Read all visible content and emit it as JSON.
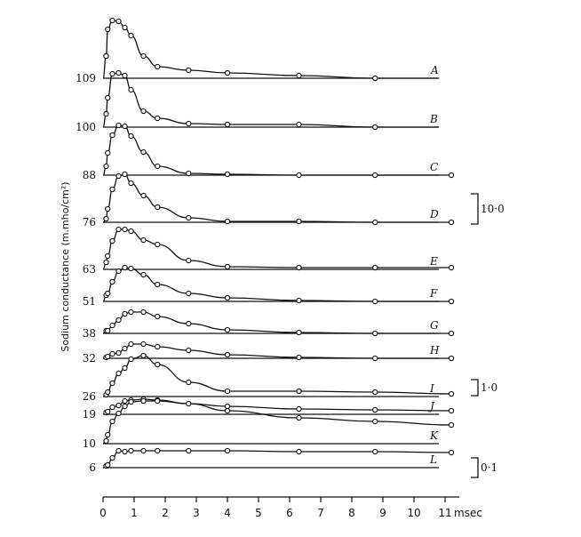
{
  "chart_data": {
    "type": "line",
    "ylabel": "Sodium conductance (m.mho/cm²)",
    "x_unit": "msec",
    "x_ticks": [
      "0",
      "1",
      "2",
      "3",
      "4",
      "5",
      "6",
      "7",
      "8",
      "9",
      "10",
      "11"
    ],
    "xlim": [
      0,
      11.5
    ],
    "scale_bars": [
      {
        "label": "10·0",
        "applies_to": [
          "A",
          "B",
          "C",
          "D"
        ]
      },
      {
        "label": "1·0",
        "applies_to": [
          "E",
          "F",
          "G",
          "H",
          "I"
        ]
      },
      {
        "label": "0·1",
        "applies_to": [
          "J",
          "K",
          "L"
        ]
      }
    ],
    "series": [
      {
        "name": "A",
        "voltage": "109",
        "scale": "10·0",
        "x": [
          0.1,
          0.15,
          0.3,
          0.5,
          0.7,
          0.9,
          1.3,
          1.75,
          2.75,
          4.0,
          6.3,
          8.75
        ],
        "y": [
          2.5,
          5.5,
          6.5,
          6.4,
          5.7,
          4.8,
          2.5,
          1.3,
          0.9,
          0.6,
          0.3,
          0.0
        ]
      },
      {
        "name": "B",
        "voltage": "100",
        "scale": "10·0",
        "x": [
          0.1,
          0.15,
          0.3,
          0.5,
          0.7,
          0.9,
          1.3,
          1.75,
          2.75,
          4.0,
          6.3,
          8.75
        ],
        "y": [
          1.5,
          3.3,
          6.0,
          6.1,
          5.8,
          4.2,
          1.8,
          1.0,
          0.4,
          0.3,
          0.3,
          0.0
        ]
      },
      {
        "name": "C",
        "voltage": "88",
        "scale": "10·0",
        "x": [
          0.1,
          0.15,
          0.3,
          0.5,
          0.7,
          0.9,
          1.3,
          1.75,
          2.75,
          4.0,
          6.3,
          8.75,
          11.2
        ],
        "y": [
          1.0,
          2.5,
          4.5,
          5.6,
          5.5,
          4.4,
          2.6,
          1.0,
          0.2,
          0.1,
          0.0,
          0.0,
          0.0
        ]
      },
      {
        "name": "D",
        "voltage": "76",
        "scale": "10·0",
        "x": [
          0.1,
          0.15,
          0.3,
          0.5,
          0.7,
          0.9,
          1.3,
          1.75,
          2.75,
          4.0,
          6.3,
          8.75,
          11.2
        ],
        "y": [
          0.4,
          1.5,
          3.7,
          5.2,
          5.4,
          4.4,
          3.0,
          1.7,
          0.5,
          0.1,
          0.1,
          0.0,
          0.0
        ]
      },
      {
        "name": "E",
        "voltage": "63",
        "scale": "1·0",
        "x": [
          0.1,
          0.15,
          0.3,
          0.5,
          0.7,
          0.9,
          1.3,
          1.75,
          2.75,
          4.0,
          6.3,
          8.75,
          11.2
        ],
        "y": [
          0.8,
          1.5,
          3.2,
          4.5,
          4.5,
          4.3,
          3.3,
          2.8,
          1.0,
          0.3,
          0.2,
          0.2,
          0.2
        ]
      },
      {
        "name": "F",
        "voltage": "51",
        "scale": "1·0",
        "x": [
          0.1,
          0.15,
          0.3,
          0.5,
          0.7,
          0.9,
          1.3,
          1.75,
          2.75,
          4.0,
          6.3,
          8.75,
          11.2
        ],
        "y": [
          0.7,
          0.9,
          2.2,
          3.4,
          3.8,
          3.7,
          3.0,
          1.9,
          0.9,
          0.4,
          0.1,
          0.0,
          0.0
        ]
      },
      {
        "name": "G",
        "voltage": "38",
        "scale": "1·0",
        "x": [
          0.1,
          0.15,
          0.3,
          0.5,
          0.7,
          0.9,
          1.3,
          1.75,
          2.75,
          4.0,
          6.3,
          8.75,
          11.2
        ],
        "y": [
          0.3,
          0.3,
          0.9,
          1.5,
          2.2,
          2.4,
          2.4,
          1.9,
          1.1,
          0.4,
          0.1,
          0.0,
          0.0
        ]
      },
      {
        "name": "H",
        "voltage": "32",
        "scale": "1·0",
        "x": [
          0.1,
          0.15,
          0.3,
          0.5,
          0.7,
          0.9,
          1.3,
          1.75,
          2.75,
          4.0,
          6.3,
          8.75,
          11.2
        ],
        "y": [
          0.1,
          0.2,
          0.5,
          0.6,
          1.1,
          1.6,
          1.6,
          1.3,
          0.9,
          0.4,
          0.1,
          0.0,
          0.0
        ]
      },
      {
        "name": "I",
        "voltage": "26",
        "scale": "1·0",
        "x": [
          0.1,
          0.15,
          0.3,
          0.5,
          0.7,
          0.9,
          1.3,
          1.75,
          2.75,
          4.0,
          6.3,
          8.75,
          11.2
        ],
        "y": [
          0.2,
          0.5,
          1.5,
          2.6,
          3.2,
          4.2,
          4.6,
          3.6,
          1.6,
          0.6,
          0.6,
          0.5,
          0.3
        ]
      },
      {
        "name": "J",
        "voltage": "19",
        "scale": "0·1",
        "x": [
          0.1,
          0.15,
          0.3,
          0.5,
          0.7,
          0.9,
          1.3,
          1.75,
          2.75,
          4.0,
          6.3,
          8.75,
          11.2
        ],
        "y": [
          0.2,
          0.3,
          0.8,
          1.0,
          1.5,
          1.6,
          1.7,
          1.6,
          1.2,
          0.9,
          0.6,
          0.5,
          0.4
        ]
      },
      {
        "name": "K",
        "voltage": "10",
        "scale": "0·1",
        "x": [
          0.1,
          0.15,
          0.3,
          0.5,
          0.7,
          0.9,
          1.3,
          1.75,
          2.75,
          4.0,
          6.3,
          8.75,
          11.2
        ],
        "y": [
          0.3,
          1.0,
          2.5,
          3.4,
          4.2,
          4.7,
          4.8,
          4.8,
          4.5,
          3.7,
          2.9,
          2.5,
          2.1
        ]
      },
      {
        "name": "L",
        "voltage": "6",
        "scale": "0·1",
        "x": [
          0.1,
          0.15,
          0.3,
          0.5,
          0.7,
          0.9,
          1.3,
          1.75,
          2.75,
          4.0,
          6.3,
          8.75,
          11.2
        ],
        "y": [
          0.2,
          0.3,
          1.1,
          1.9,
          1.8,
          1.9,
          1.9,
          1.9,
          1.9,
          1.9,
          1.8,
          1.8,
          1.7
        ]
      }
    ]
  }
}
